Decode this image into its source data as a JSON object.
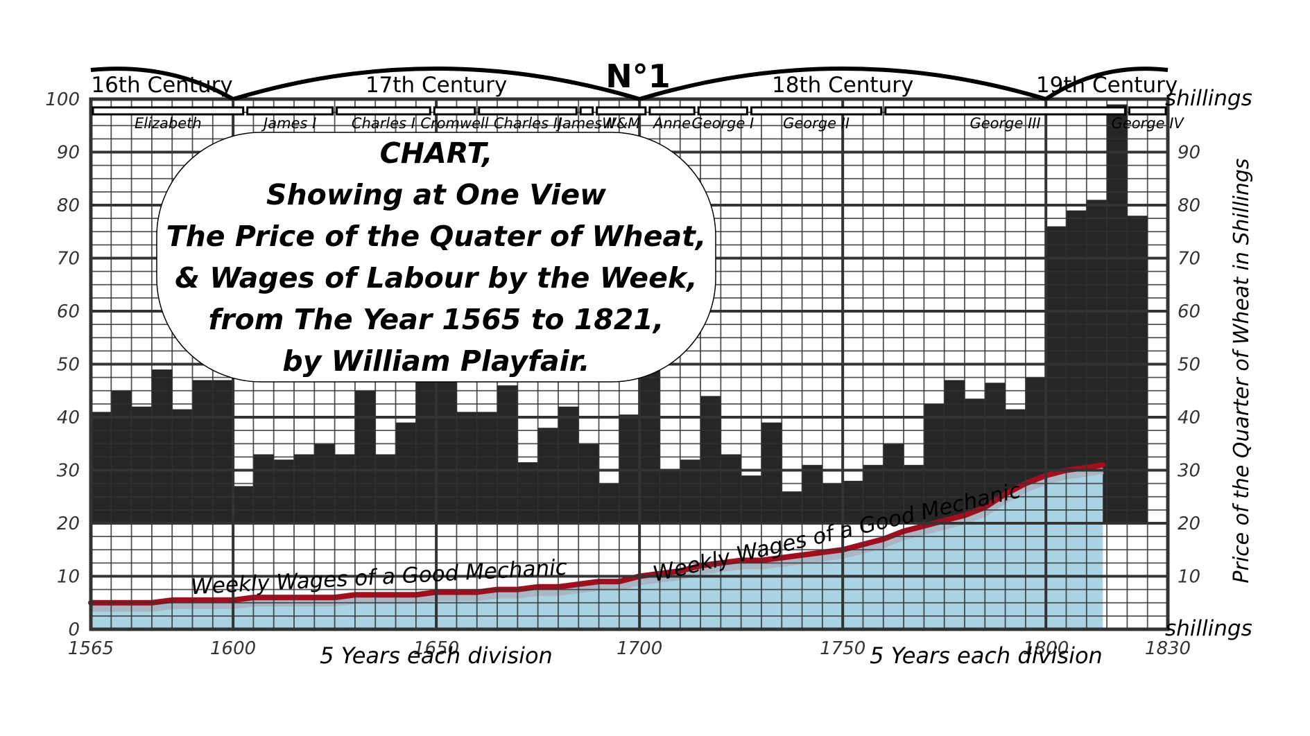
{
  "chart_data": {
    "type": "bar",
    "plate_label": "N°1",
    "title_lines": [
      "CHART,",
      "Showing at One View",
      "The Price of the Quater of Wheat,",
      "& Wages of Labour by the Week,",
      "from The Year 1565 to 1821,",
      "by William Playfair."
    ],
    "ylabel_right": "Price of the Quarter of Wheat in Shillings",
    "unit_label": "shillings",
    "x_note": "5 Years each division",
    "wages_label": "Weekly Wages of a Good Mechanic",
    "xlim": [
      1565,
      1830
    ],
    "ylim": [
      0,
      100
    ],
    "bar_baseline": 20,
    "x_ticks": [
      1565,
      1600,
      1650,
      1700,
      1750,
      1800,
      1830
    ],
    "y_ticks": [
      0,
      10,
      20,
      30,
      40,
      50,
      60,
      70,
      80,
      90,
      100
    ],
    "centuries": [
      {
        "label": "16th Century",
        "start": 1565,
        "end": 1600
      },
      {
        "label": "17th Century",
        "start": 1600,
        "end": 1700
      },
      {
        "label": "18th Century",
        "start": 1700,
        "end": 1800
      },
      {
        "label": "19th Century",
        "start": 1800,
        "end": 1830
      }
    ],
    "reigns": [
      {
        "name": "Elizabeth",
        "start": 1565,
        "end": 1603
      },
      {
        "name": "James I",
        "start": 1603,
        "end": 1625
      },
      {
        "name": "Charles I",
        "start": 1625,
        "end": 1649
      },
      {
        "name": "Cromwell",
        "start": 1649,
        "end": 1660
      },
      {
        "name": "Charles II",
        "start": 1660,
        "end": 1685
      },
      {
        "name": "James II",
        "start": 1685,
        "end": 1689
      },
      {
        "name": "W&M",
        "start": 1689,
        "end": 1702
      },
      {
        "name": "Anne",
        "start": 1702,
        "end": 1714
      },
      {
        "name": "George I",
        "start": 1714,
        "end": 1727
      },
      {
        "name": "George II",
        "start": 1727,
        "end": 1760
      },
      {
        "name": "George III",
        "start": 1760,
        "end": 1820
      },
      {
        "name": "George IV",
        "start": 1820,
        "end": 1830
      }
    ],
    "wheat_series": {
      "name": "Price of the Quarter of Wheat",
      "x": [
        1565,
        1570,
        1575,
        1580,
        1585,
        1590,
        1595,
        1600,
        1605,
        1610,
        1615,
        1620,
        1625,
        1630,
        1635,
        1640,
        1645,
        1650,
        1655,
        1660,
        1665,
        1670,
        1675,
        1680,
        1685,
        1690,
        1695,
        1700,
        1705,
        1710,
        1715,
        1720,
        1725,
        1730,
        1735,
        1740,
        1745,
        1750,
        1755,
        1760,
        1765,
        1770,
        1775,
        1780,
        1785,
        1790,
        1795,
        1800,
        1805,
        1810,
        1815,
        1820
      ],
      "values": [
        41,
        45,
        42,
        49,
        41.5,
        47,
        47,
        27,
        33,
        32,
        33,
        35,
        33,
        45,
        33,
        39,
        47,
        47,
        41,
        41,
        46,
        31.5,
        38,
        42,
        35,
        27.5,
        40.5,
        49,
        30,
        32,
        44,
        33,
        29,
        39,
        26,
        31,
        27.5,
        28,
        31,
        35,
        31,
        42.5,
        47,
        43.5,
        46.5,
        41.5,
        47.5,
        76,
        79,
        81,
        99,
        78
      ]
    },
    "wages_series": {
      "name": "Weekly Wages of a Good Mechanic",
      "x": [
        1565,
        1570,
        1575,
        1580,
        1585,
        1590,
        1595,
        1600,
        1605,
        1610,
        1615,
        1620,
        1625,
        1630,
        1635,
        1640,
        1645,
        1650,
        1655,
        1660,
        1665,
        1670,
        1675,
        1680,
        1685,
        1690,
        1695,
        1700,
        1705,
        1710,
        1715,
        1720,
        1725,
        1730,
        1735,
        1740,
        1745,
        1750,
        1755,
        1760,
        1765,
        1770,
        1775,
        1780,
        1785,
        1790,
        1795,
        1800,
        1805,
        1810,
        1815
      ],
      "values": [
        5,
        5,
        5,
        5,
        5.5,
        5.5,
        5.5,
        5.5,
        6,
        6,
        6,
        6,
        6,
        6.5,
        6.5,
        6.5,
        6.5,
        7,
        7,
        7,
        7.5,
        7.5,
        8,
        8,
        8.5,
        9,
        9,
        10,
        10.5,
        11,
        12,
        12.5,
        13,
        13,
        13.5,
        14,
        14.5,
        15,
        16,
        17,
        18.5,
        19.5,
        20.5,
        21.5,
        23,
        25.5,
        27.5,
        29,
        30,
        30.5,
        31
      ]
    },
    "colors": {
      "bars": "#262626",
      "grid": "#333333",
      "wages_fill": "#a9d2e2",
      "wages_line": "#a30e1f",
      "wages_shadow": "#a9b6c3",
      "background": "#ffffff"
    },
    "grid": true
  }
}
